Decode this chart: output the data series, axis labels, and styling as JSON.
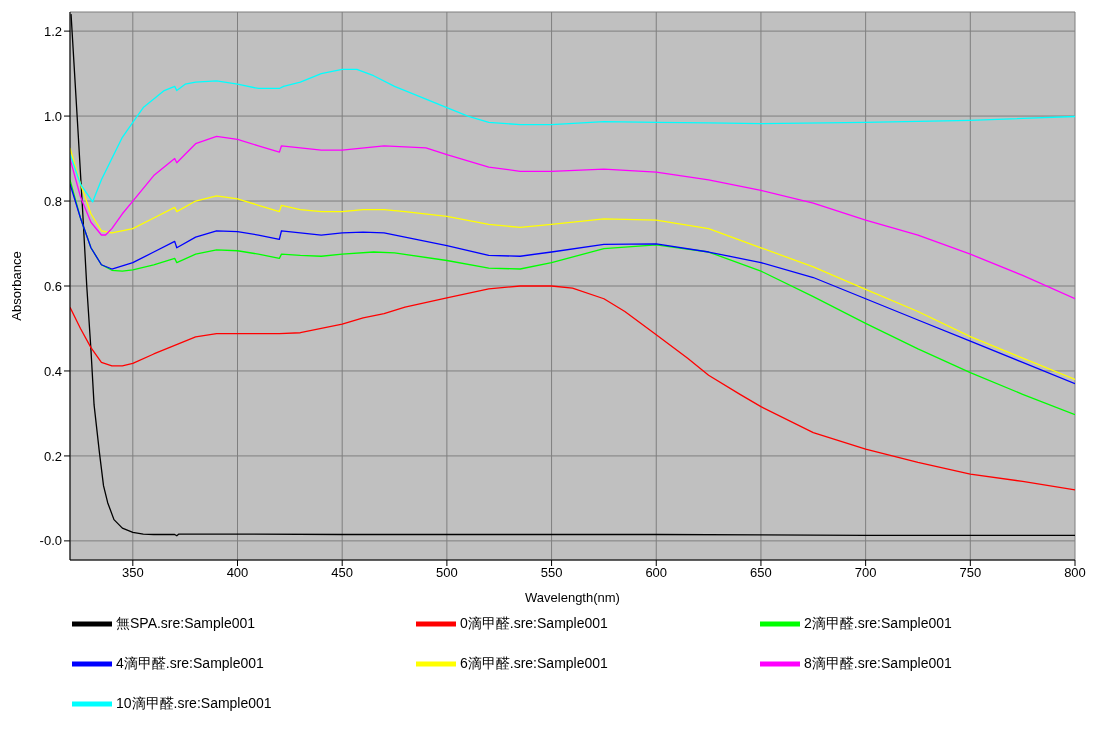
{
  "chart_data": {
    "type": "line",
    "xlabel": "Wavelength(nm)",
    "ylabel": "Absorbance",
    "xlim": [
      320,
      800
    ],
    "xticks": [
      350,
      400,
      450,
      500,
      550,
      600,
      650,
      700,
      750,
      800
    ],
    "ylim": [
      -0.045,
      1.245
    ],
    "yticks": [
      {
        "value": 0,
        "label": "-0.0"
      },
      0.2,
      0.4,
      0.6,
      0.8,
      {
        "value": 1,
        "label": "1.0"
      },
      1.2
    ],
    "grid": true,
    "legend": "bottom",
    "marker": "none",
    "line_style": "solid",
    "series": [
      {
        "name": "無SPA.sre:Sample001",
        "color": "#000000",
        "x": [
          320.5,
          324,
          326,
          328,
          330,
          331.5,
          334,
          336,
          338,
          341,
          345,
          350,
          355,
          360,
          370,
          371,
          372,
          400,
          450,
          500,
          550,
          600,
          650,
          700,
          750,
          800
        ],
        "values": [
          1.24,
          0.95,
          0.78,
          0.6,
          0.45,
          0.32,
          0.21,
          0.13,
          0.09,
          0.05,
          0.03,
          0.02,
          0.016,
          0.015,
          0.015,
          0.012,
          0.016,
          0.016,
          0.015,
          0.015,
          0.015,
          0.015,
          0.014,
          0.013,
          0.013,
          0.013
        ]
      },
      {
        "name": "0滴甲醛.sre:Sample001",
        "color": "#ff0000",
        "x": [
          320,
          325,
          330,
          335,
          340,
          345,
          350,
          360,
          370,
          380,
          390,
          400,
          420,
          430,
          440,
          450,
          460,
          470,
          480,
          500,
          520,
          535,
          550,
          560,
          575,
          585,
          600,
          615,
          625,
          640,
          650,
          675,
          700,
          725,
          750,
          775,
          800
        ],
        "values": [
          0.55,
          0.5,
          0.455,
          0.42,
          0.412,
          0.412,
          0.418,
          0.44,
          0.46,
          0.48,
          0.488,
          0.488,
          0.488,
          0.49,
          0.5,
          0.51,
          0.525,
          0.535,
          0.55,
          0.572,
          0.593,
          0.6,
          0.6,
          0.595,
          0.57,
          0.54,
          0.485,
          0.43,
          0.39,
          0.345,
          0.316,
          0.255,
          0.216,
          0.185,
          0.157,
          0.14,
          0.12
        ]
      },
      {
        "name": "2滴甲醛.sre:Sample001",
        "color": "#00ff00",
        "x": [
          320,
          325,
          330,
          335,
          340,
          345,
          350,
          360,
          370,
          371,
          380,
          390,
          400,
          410,
          420,
          421,
          430,
          440,
          450,
          465,
          475,
          500,
          520,
          535,
          550,
          575,
          600,
          625,
          650,
          675,
          700,
          725,
          750,
          775,
          800
        ],
        "values": [
          0.85,
          0.76,
          0.69,
          0.65,
          0.637,
          0.635,
          0.638,
          0.65,
          0.665,
          0.655,
          0.675,
          0.685,
          0.683,
          0.675,
          0.665,
          0.675,
          0.672,
          0.67,
          0.675,
          0.68,
          0.678,
          0.66,
          0.642,
          0.64,
          0.655,
          0.688,
          0.697,
          0.68,
          0.635,
          0.575,
          0.512,
          0.452,
          0.396,
          0.345,
          0.297
        ]
      },
      {
        "name": "4滴甲醛.sre:Sample001",
        "color": "#0000ff",
        "x": [
          320,
          325,
          330,
          335,
          340,
          350,
          360,
          370,
          371,
          380,
          390,
          400,
          410,
          420,
          421,
          430,
          440,
          450,
          460,
          470,
          480,
          500,
          520,
          535,
          550,
          575,
          600,
          625,
          650,
          675,
          700,
          725,
          750,
          775,
          800
        ],
        "values": [
          0.84,
          0.76,
          0.69,
          0.65,
          0.64,
          0.655,
          0.68,
          0.705,
          0.69,
          0.715,
          0.73,
          0.728,
          0.72,
          0.71,
          0.73,
          0.725,
          0.72,
          0.725,
          0.727,
          0.725,
          0.715,
          0.695,
          0.672,
          0.67,
          0.68,
          0.698,
          0.699,
          0.68,
          0.655,
          0.62,
          0.57,
          0.52,
          0.47,
          0.42,
          0.37
        ]
      },
      {
        "name": "6滴甲醛.sre:Sample001",
        "color": "#ffff00",
        "x": [
          320,
          325,
          330,
          335,
          340,
          350,
          360,
          370,
          371,
          380,
          390,
          400,
          410,
          420,
          421,
          430,
          440,
          450,
          460,
          470,
          480,
          500,
          520,
          535,
          550,
          575,
          600,
          625,
          650,
          675,
          700,
          725,
          750,
          775,
          800
        ],
        "values": [
          0.925,
          0.84,
          0.77,
          0.73,
          0.725,
          0.735,
          0.76,
          0.785,
          0.775,
          0.8,
          0.812,
          0.805,
          0.79,
          0.775,
          0.79,
          0.78,
          0.775,
          0.775,
          0.78,
          0.78,
          0.775,
          0.764,
          0.745,
          0.738,
          0.745,
          0.758,
          0.755,
          0.735,
          0.69,
          0.645,
          0.592,
          0.54,
          0.481,
          0.43,
          0.38
        ]
      },
      {
        "name": "8滴甲醛.sre:Sample001",
        "color": "#ff00ff",
        "x": [
          320,
          325,
          330,
          335,
          337,
          340,
          345,
          350,
          355,
          360,
          365,
          370,
          371,
          375,
          380,
          390,
          400,
          410,
          420,
          421,
          430,
          440,
          450,
          470,
          490,
          500,
          520,
          535,
          550,
          575,
          600,
          625,
          650,
          675,
          700,
          725,
          750,
          775,
          800
        ],
        "values": [
          0.9,
          0.81,
          0.75,
          0.72,
          0.72,
          0.735,
          0.77,
          0.8,
          0.83,
          0.86,
          0.88,
          0.9,
          0.89,
          0.91,
          0.935,
          0.952,
          0.945,
          0.93,
          0.915,
          0.93,
          0.925,
          0.92,
          0.92,
          0.93,
          0.925,
          0.909,
          0.88,
          0.87,
          0.87,
          0.875,
          0.868,
          0.85,
          0.825,
          0.795,
          0.755,
          0.72,
          0.675,
          0.625,
          0.57
        ]
      },
      {
        "name": "10滴甲醛.sre:Sample001",
        "color": "#00ffff",
        "x": [
          320,
          325,
          330.8,
          335,
          340,
          345,
          350,
          355,
          360,
          365,
          370,
          371,
          375,
          380,
          390,
          400,
          410,
          420,
          422,
          430,
          440,
          450,
          457,
          465,
          475,
          490,
          500,
          510,
          520,
          535,
          550,
          575,
          600,
          625,
          650,
          700,
          750,
          800
        ],
        "values": [
          0.91,
          0.84,
          0.798,
          0.85,
          0.9,
          0.95,
          0.985,
          1.02,
          1.04,
          1.06,
          1.07,
          1.06,
          1.075,
          1.08,
          1.083,
          1.075,
          1.065,
          1.065,
          1.07,
          1.08,
          1.1,
          1.11,
          1.11,
          1.095,
          1.07,
          1.04,
          1.02,
          1.0,
          0.985,
          0.98,
          0.98,
          0.987,
          0.985,
          0.984,
          0.982,
          0.985,
          0.99,
          0.999
        ]
      }
    ]
  }
}
